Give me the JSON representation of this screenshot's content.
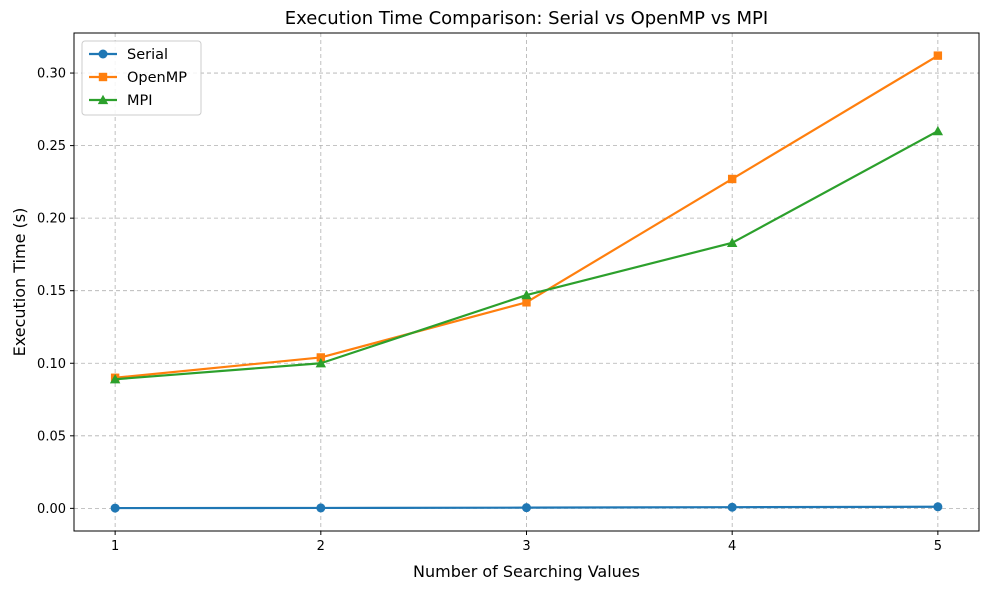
{
  "chart_data": {
    "type": "line",
    "title": "Execution Time Comparison: Serial vs OpenMP vs MPI",
    "xlabel": "Number of Searching Values",
    "ylabel": "Execution Time (s)",
    "x": [
      1,
      2,
      3,
      4,
      5
    ],
    "x_ticks": [
      "1",
      "2",
      "3",
      "4",
      "5"
    ],
    "xlim": [
      0.8,
      5.2
    ],
    "ylim": [
      -0.0156,
      0.3276
    ],
    "y_ticks": [
      "0.00",
      "0.05",
      "0.10",
      "0.15",
      "0.20",
      "0.25",
      "0.30"
    ],
    "y_tick_values": [
      0,
      0.05,
      0.1,
      0.15,
      0.2,
      0.25,
      0.3
    ],
    "grid": true,
    "legend_position": "top-left",
    "series": [
      {
        "name": "Serial",
        "color": "#1f77b4",
        "marker": "circle",
        "values": [
          0.0002,
          0.0003,
          0.0005,
          0.0008,
          0.0011
        ]
      },
      {
        "name": "OpenMP",
        "color": "#ff7f0e",
        "marker": "square",
        "values": [
          0.09,
          0.104,
          0.142,
          0.227,
          0.312
        ]
      },
      {
        "name": "MPI",
        "color": "#2ca02c",
        "marker": "triangle",
        "values": [
          0.089,
          0.1,
          0.147,
          0.183,
          0.26
        ]
      }
    ]
  }
}
